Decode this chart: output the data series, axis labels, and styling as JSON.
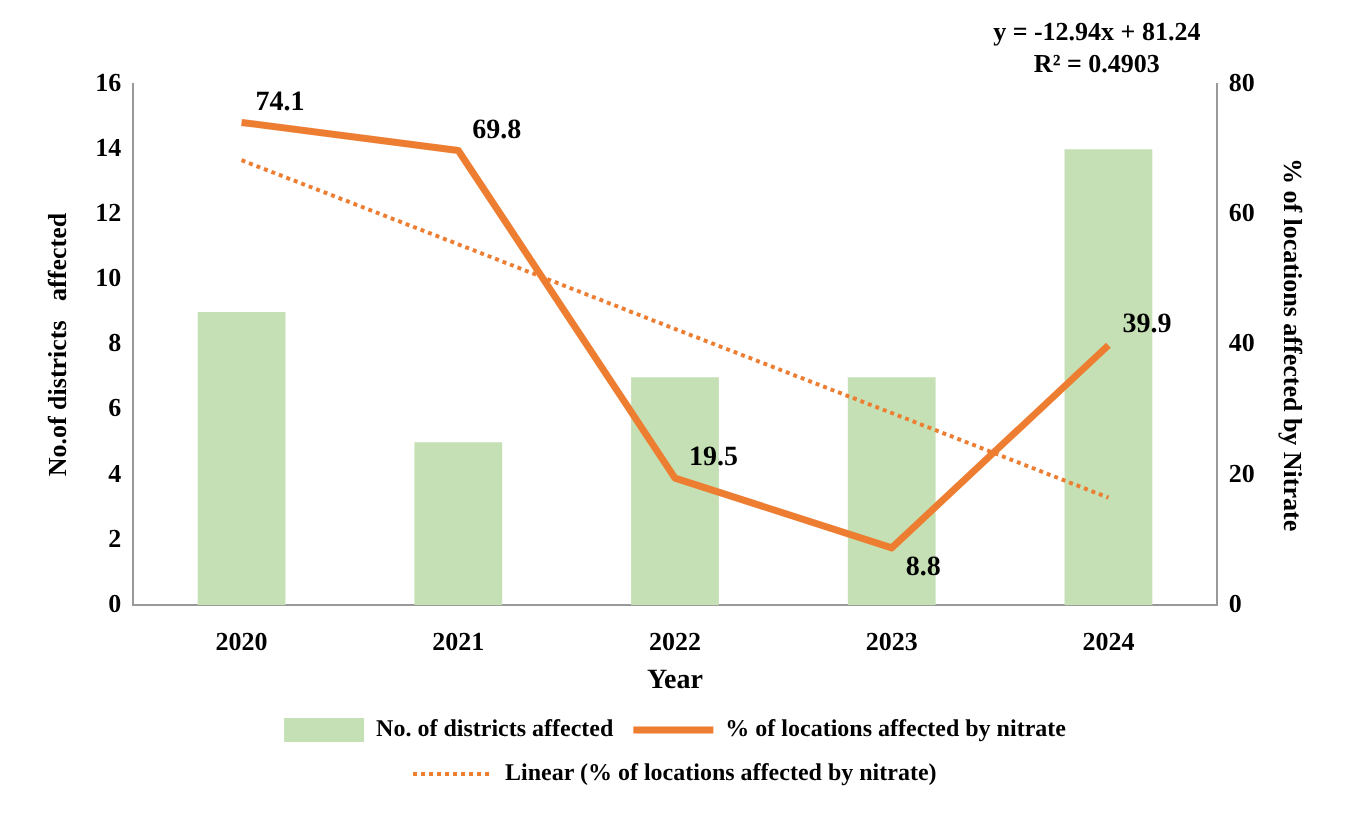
{
  "chart_data": {
    "type": "bar",
    "categories": [
      "2020",
      "2021",
      "2022",
      "2023",
      "2024"
    ],
    "xlabel": "Year",
    "ylabel": "No.of districts   affected",
    "y2label": "% of locations affected by Nitrate",
    "series": [
      {
        "name": "No. of districts affected",
        "color": "#c5e0b4",
        "values": [
          9,
          5,
          7,
          7,
          14
        ]
      },
      {
        "name": "% of locations affected by nitrate",
        "type": "line",
        "axis": "y2",
        "color": "#ed7d31",
        "marker": "none",
        "line_style": "solid",
        "values": [
          74.1,
          69.8,
          19.5,
          8.8,
          39.9
        ],
        "value_labels": [
          "74.1",
          "69.8",
          "19.5",
          "8.8",
          "39.9"
        ]
      },
      {
        "name": "Linear (% of locations affected by nitrate)",
        "type": "line",
        "axis": "y2",
        "color": "#ed7d31",
        "marker": "none",
        "line_style": "dotted",
        "values": [
          68.3,
          55.4,
          42.4,
          29.5,
          16.5
        ]
      }
    ],
    "ylim": [
      0,
      16
    ],
    "yticks": [
      0,
      2,
      4,
      6,
      8,
      10,
      12,
      14,
      16
    ],
    "y2lim": [
      0,
      80
    ],
    "y2ticks": [
      0,
      20,
      40,
      60,
      80
    ],
    "annotations": [
      "y = -12.94x + 81.24",
      "R² = 0.4903"
    ],
    "grid": false,
    "legend": "bottom"
  }
}
